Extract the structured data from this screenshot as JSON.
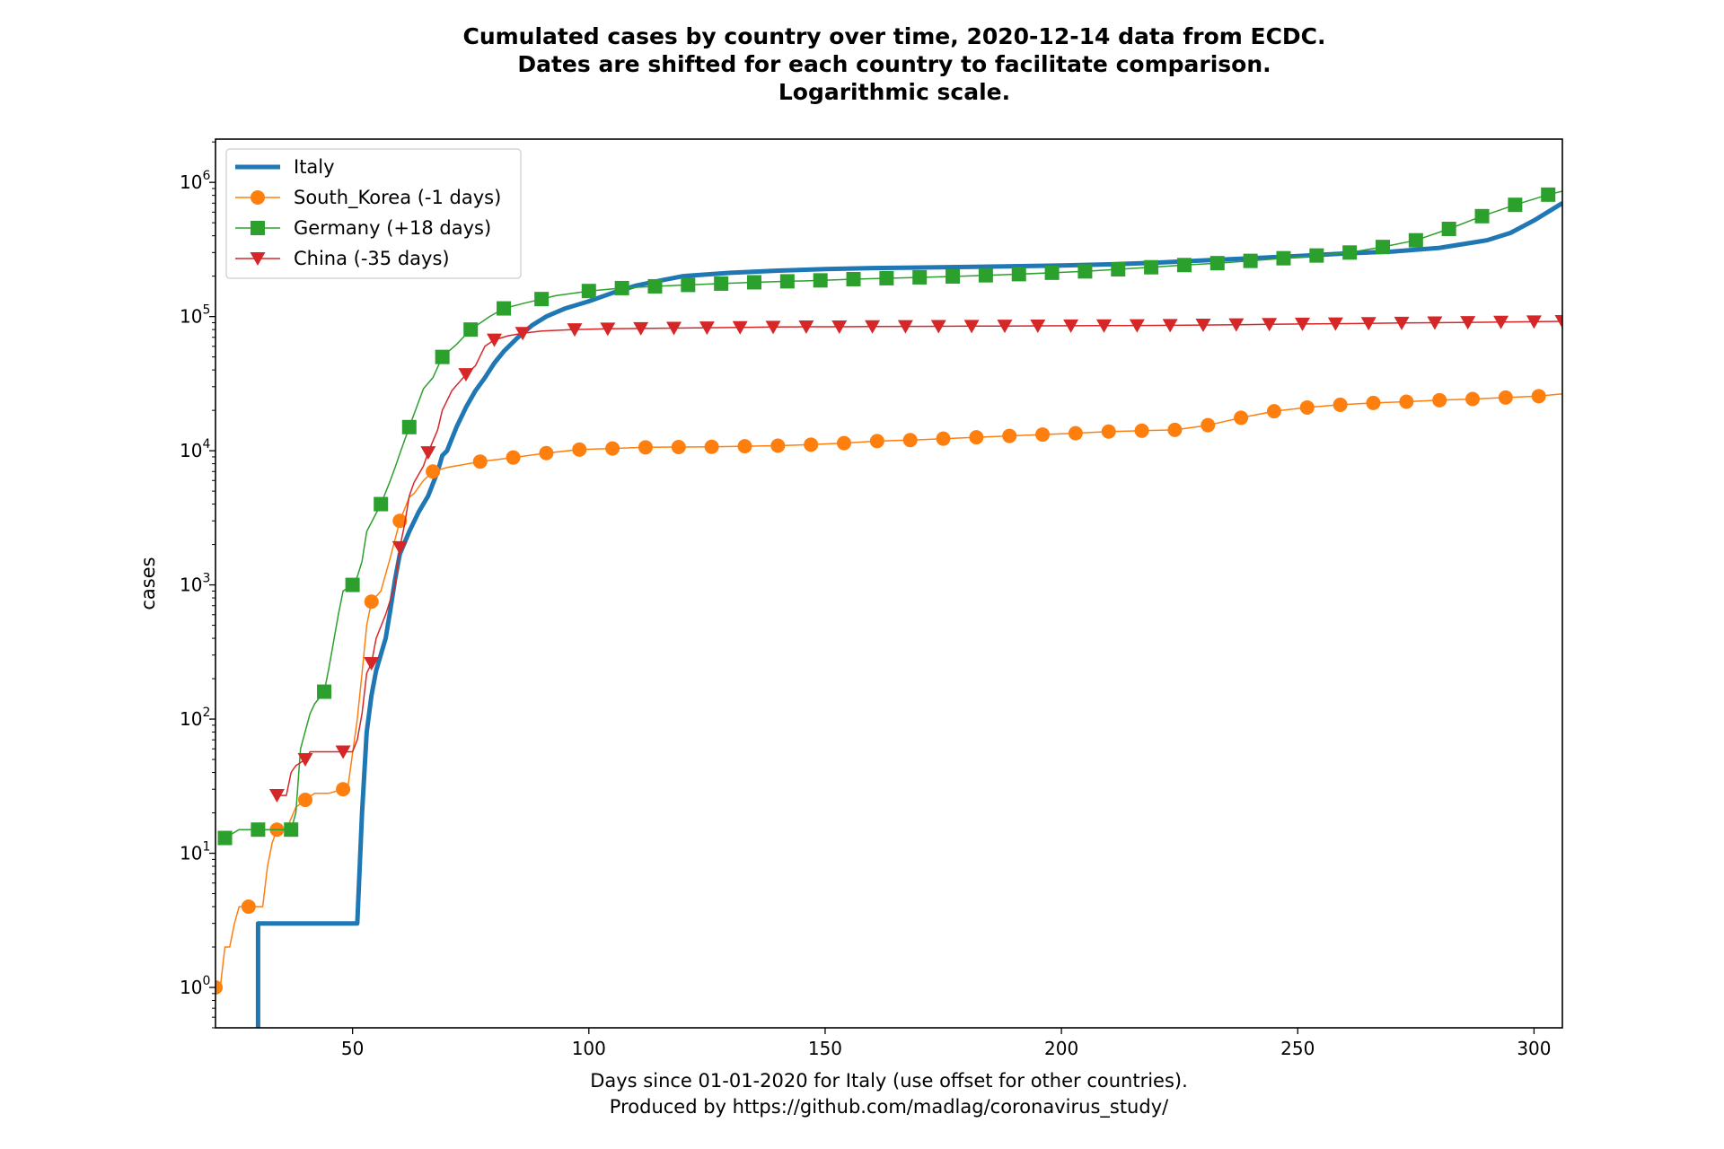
{
  "chart_data": {
    "type": "line",
    "title_lines": [
      "Cumulated cases by country over time, 2020-12-14 data from ECDC.",
      "Dates are shifted for each country to facilitate comparison.",
      "Logarithmic scale."
    ],
    "ylabel": "cases",
    "xlabel_lines": [
      "Days since 01-01-2020 for Italy (use offset for other countries).",
      "Produced by https://github.com/madlag/coronavirus_study/"
    ],
    "xlim": [
      21,
      306
    ],
    "ylim": [
      0.5,
      2100000
    ],
    "yscale": "log",
    "grid": false,
    "legend_position": "top-left",
    "x_ticks": [
      50,
      100,
      150,
      200,
      250,
      300
    ],
    "y_ticks": [
      {
        "value": 1,
        "base": "10",
        "exp": "0"
      },
      {
        "value": 10,
        "base": "10",
        "exp": "1"
      },
      {
        "value": 100,
        "base": "10",
        "exp": "2"
      },
      {
        "value": 1000,
        "base": "10",
        "exp": "3"
      },
      {
        "value": 10000,
        "base": "10",
        "exp": "4"
      },
      {
        "value": 100000,
        "base": "10",
        "exp": "5"
      },
      {
        "value": 1000000,
        "base": "10",
        "exp": "6"
      }
    ],
    "series": [
      {
        "name": "Italy",
        "color": "#1f77b4",
        "marker": "none",
        "line_width": 5,
        "points": [
          [
            30,
            0.4
          ],
          [
            30,
            3
          ],
          [
            51,
            3
          ],
          [
            52,
            20
          ],
          [
            53,
            80
          ],
          [
            54,
            150
          ],
          [
            55,
            230
          ],
          [
            57,
            400
          ],
          [
            58,
            650
          ],
          [
            59,
            1100
          ],
          [
            60,
            1700
          ],
          [
            62,
            2500
          ],
          [
            64,
            3500
          ],
          [
            66,
            4600
          ],
          [
            68,
            7000
          ],
          [
            69,
            9200
          ],
          [
            70,
            10000
          ],
          [
            72,
            15000
          ],
          [
            74,
            21000
          ],
          [
            76,
            28000
          ],
          [
            78,
            35000
          ],
          [
            80,
            45000
          ],
          [
            82,
            55000
          ],
          [
            85,
            70000
          ],
          [
            88,
            86000
          ],
          [
            91,
            100000
          ],
          [
            95,
            115000
          ],
          [
            100,
            130000
          ],
          [
            105,
            150000
          ],
          [
            110,
            170000
          ],
          [
            115,
            185000
          ],
          [
            120,
            200000
          ],
          [
            130,
            212000
          ],
          [
            140,
            220000
          ],
          [
            150,
            226000
          ],
          [
            160,
            230000
          ],
          [
            180,
            234000
          ],
          [
            200,
            240000
          ],
          [
            210,
            245000
          ],
          [
            220,
            252000
          ],
          [
            230,
            262000
          ],
          [
            240,
            272000
          ],
          [
            250,
            282000
          ],
          [
            260,
            295000
          ],
          [
            270,
            305000
          ],
          [
            280,
            325000
          ],
          [
            290,
            370000
          ],
          [
            295,
            420000
          ],
          [
            300,
            520000
          ],
          [
            306,
            700000
          ]
        ]
      },
      {
        "name": "South_Korea (-1 days)",
        "color": "#ff7f0e",
        "marker": "circle",
        "line_width": 1.5,
        "points": [
          [
            21,
            1
          ],
          [
            22,
            1
          ],
          [
            23,
            2
          ],
          [
            24,
            2
          ],
          [
            25,
            3
          ],
          [
            26,
            4
          ],
          [
            28,
            4
          ],
          [
            29,
            4
          ],
          [
            31,
            4
          ],
          [
            32,
            8
          ],
          [
            33,
            12
          ],
          [
            34,
            15
          ],
          [
            36,
            15
          ],
          [
            38,
            22
          ],
          [
            40,
            25
          ],
          [
            42,
            28
          ],
          [
            45,
            28
          ],
          [
            48,
            30
          ],
          [
            49,
            31
          ],
          [
            51,
            100
          ],
          [
            52,
            220
          ],
          [
            53,
            500
          ],
          [
            54,
            750
          ],
          [
            56,
            900
          ],
          [
            58,
            1600
          ],
          [
            60,
            3000
          ],
          [
            62,
            4500
          ],
          [
            63,
            4800
          ],
          [
            65,
            6000
          ],
          [
            67,
            7000
          ],
          [
            70,
            7500
          ],
          [
            77,
            8300
          ],
          [
            84,
            8900
          ],
          [
            91,
            9600
          ],
          [
            98,
            10200
          ],
          [
            105,
            10400
          ],
          [
            112,
            10600
          ],
          [
            119,
            10650
          ],
          [
            126,
            10700
          ],
          [
            133,
            10800
          ],
          [
            140,
            10900
          ],
          [
            147,
            11100
          ],
          [
            154,
            11400
          ],
          [
            161,
            11800
          ],
          [
            168,
            12000
          ],
          [
            175,
            12300
          ],
          [
            182,
            12600
          ],
          [
            189,
            12900
          ],
          [
            196,
            13200
          ],
          [
            203,
            13500
          ],
          [
            210,
            13900
          ],
          [
            217,
            14100
          ],
          [
            224,
            14300
          ],
          [
            231,
            15500
          ],
          [
            238,
            17600
          ],
          [
            245,
            19700
          ],
          [
            252,
            21000
          ],
          [
            259,
            22000
          ],
          [
            266,
            22700
          ],
          [
            273,
            23200
          ],
          [
            280,
            23800
          ],
          [
            287,
            24300
          ],
          [
            294,
            24900
          ],
          [
            301,
            25500
          ],
          [
            306,
            26500
          ]
        ]
      },
      {
        "name": "Germany (+18 days)",
        "color": "#2ca02c",
        "marker": "square",
        "line_width": 1.5,
        "points": [
          [
            23,
            13
          ],
          [
            26,
            15
          ],
          [
            30,
            15
          ],
          [
            34,
            15
          ],
          [
            37,
            15
          ],
          [
            38,
            20
          ],
          [
            39,
            60
          ],
          [
            41,
            110
          ],
          [
            42,
            130
          ],
          [
            44,
            160
          ],
          [
            45,
            240
          ],
          [
            47,
            600
          ],
          [
            48,
            900
          ],
          [
            50,
            1000
          ],
          [
            51,
            1150
          ],
          [
            52,
            1500
          ],
          [
            53,
            2500
          ],
          [
            56,
            4000
          ],
          [
            58,
            6000
          ],
          [
            59,
            7500
          ],
          [
            60,
            9500
          ],
          [
            62,
            15000
          ],
          [
            65,
            29000
          ],
          [
            67,
            35000
          ],
          [
            69,
            50000
          ],
          [
            72,
            62000
          ],
          [
            75,
            80000
          ],
          [
            79,
            100000
          ],
          [
            82,
            115000
          ],
          [
            86,
            125000
          ],
          [
            90,
            135000
          ],
          [
            93,
            143000
          ],
          [
            100,
            155000
          ],
          [
            107,
            163000
          ],
          [
            114,
            168000
          ],
          [
            121,
            172000
          ],
          [
            128,
            176000
          ],
          [
            135,
            180000
          ],
          [
            142,
            183000
          ],
          [
            149,
            186000
          ],
          [
            156,
            190000
          ],
          [
            163,
            193000
          ],
          [
            170,
            196000
          ],
          [
            177,
            199000
          ],
          [
            184,
            203000
          ],
          [
            191,
            207000
          ],
          [
            198,
            212000
          ],
          [
            205,
            217000
          ],
          [
            212,
            225000
          ],
          [
            219,
            233000
          ],
          [
            226,
            242000
          ],
          [
            233,
            250000
          ],
          [
            240,
            260000
          ],
          [
            247,
            272000
          ],
          [
            254,
            285000
          ],
          [
            261,
            300000
          ],
          [
            268,
            330000
          ],
          [
            275,
            370000
          ],
          [
            282,
            450000
          ],
          [
            289,
            560000
          ],
          [
            296,
            680000
          ],
          [
            303,
            810000
          ],
          [
            306,
            860000
          ]
        ]
      },
      {
        "name": "China (-35 days)",
        "color": "#d62728",
        "marker": "triangle-down",
        "line_width": 1.5,
        "points": [
          [
            34,
            27
          ],
          [
            36,
            27
          ],
          [
            37,
            40
          ],
          [
            38,
            45
          ],
          [
            40,
            50
          ],
          [
            41,
            57
          ],
          [
            44,
            57
          ],
          [
            48,
            57
          ],
          [
            50,
            57
          ],
          [
            51,
            70
          ],
          [
            52,
            110
          ],
          [
            53,
            220
          ],
          [
            54,
            260
          ],
          [
            55,
            400
          ],
          [
            57,
            600
          ],
          [
            59,
            1000
          ],
          [
            60,
            1900
          ],
          [
            61,
            2800
          ],
          [
            62,
            4600
          ],
          [
            63,
            5800
          ],
          [
            65,
            7700
          ],
          [
            66,
            9700
          ],
          [
            68,
            14300
          ],
          [
            69,
            20000
          ],
          [
            71,
            28000
          ],
          [
            74,
            37000
          ],
          [
            76,
            43000
          ],
          [
            78,
            60000
          ],
          [
            80,
            67000
          ],
          [
            83,
            72000
          ],
          [
            86,
            75000
          ],
          [
            90,
            78000
          ],
          [
            97,
            80000
          ],
          [
            104,
            81000
          ],
          [
            111,
            81500
          ],
          [
            118,
            82000
          ],
          [
            125,
            82500
          ],
          [
            132,
            83000
          ],
          [
            139,
            83500
          ],
          [
            146,
            84000
          ],
          [
            153,
            84000
          ],
          [
            160,
            84200
          ],
          [
            167,
            84400
          ],
          [
            174,
            84600
          ],
          [
            181,
            84800
          ],
          [
            188,
            85000
          ],
          [
            195,
            85200
          ],
          [
            202,
            85400
          ],
          [
            209,
            85600
          ],
          [
            216,
            85800
          ],
          [
            223,
            86000
          ],
          [
            230,
            86500
          ],
          [
            237,
            87000
          ],
          [
            244,
            87500
          ],
          [
            251,
            88000
          ],
          [
            258,
            88500
          ],
          [
            265,
            89000
          ],
          [
            272,
            89500
          ],
          [
            279,
            90000
          ],
          [
            286,
            90500
          ],
          [
            293,
            91000
          ],
          [
            300,
            91500
          ],
          [
            306,
            92000
          ]
        ]
      }
    ]
  }
}
